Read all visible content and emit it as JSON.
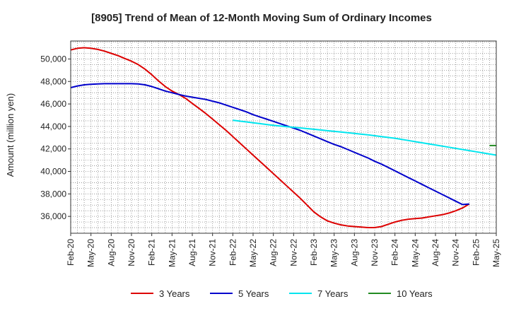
{
  "chart_data": {
    "type": "line",
    "title": "[8905]  Trend of Mean of 12-Month Moving Sum of Ordinary Incomes",
    "xlabel": "",
    "ylabel": "Amount (million yen)",
    "ylim": [
      34500,
      51600
    ],
    "yticks": [
      36000,
      38000,
      40000,
      42000,
      44000,
      46000,
      48000,
      50000
    ],
    "ytick_labels": [
      "36,000",
      "38,000",
      "40,000",
      "42,000",
      "44,000",
      "46,000",
      "48,000",
      "50,000"
    ],
    "x_tick_labels": [
      "Feb-20",
      "May-20",
      "Aug-20",
      "Nov-20",
      "Feb-21",
      "May-21",
      "Aug-21",
      "Nov-21",
      "Feb-22",
      "May-22",
      "Aug-22",
      "Nov-22",
      "Feb-23",
      "May-23",
      "Aug-23",
      "Nov-23",
      "Feb-24",
      "May-24",
      "Aug-24",
      "Nov-24",
      "Feb-25",
      "May-25"
    ],
    "x_month_offset_of_first_tick": 0,
    "x_months_per_tick": 3,
    "grid": true,
    "legend_position": "bottom",
    "series": [
      {
        "name": "3 Years",
        "color": "#dd0000",
        "points": [
          [
            0,
            50800
          ],
          [
            1,
            50950
          ],
          [
            2,
            51000
          ],
          [
            3,
            50950
          ],
          [
            4,
            50850
          ],
          [
            5,
            50700
          ],
          [
            6,
            50500
          ],
          [
            7,
            50300
          ],
          [
            8,
            50050
          ],
          [
            9,
            49800
          ],
          [
            10,
            49500
          ],
          [
            11,
            49100
          ],
          [
            12,
            48600
          ],
          [
            13,
            48050
          ],
          [
            14,
            47550
          ],
          [
            15,
            47150
          ],
          [
            16,
            46850
          ],
          [
            17,
            46500
          ],
          [
            18,
            46050
          ],
          [
            19,
            45600
          ],
          [
            20,
            45150
          ],
          [
            21,
            44650
          ],
          [
            22,
            44150
          ],
          [
            23,
            43650
          ],
          [
            24,
            43100
          ],
          [
            25,
            42550
          ],
          [
            26,
            42000
          ],
          [
            27,
            41450
          ],
          [
            28,
            40900
          ],
          [
            29,
            40350
          ],
          [
            30,
            39800
          ],
          [
            31,
            39250
          ],
          [
            32,
            38700
          ],
          [
            33,
            38150
          ],
          [
            34,
            37600
          ],
          [
            35,
            37000
          ],
          [
            36,
            36400
          ],
          [
            37,
            35950
          ],
          [
            38,
            35600
          ],
          [
            39,
            35400
          ],
          [
            40,
            35250
          ],
          [
            41,
            35150
          ],
          [
            42,
            35100
          ],
          [
            43,
            35050
          ],
          [
            44,
            35000
          ],
          [
            45,
            35000
          ],
          [
            46,
            35100
          ],
          [
            47,
            35300
          ],
          [
            48,
            35500
          ],
          [
            49,
            35650
          ],
          [
            50,
            35750
          ],
          [
            51,
            35800
          ],
          [
            52,
            35850
          ],
          [
            53,
            35950
          ],
          [
            54,
            36050
          ],
          [
            55,
            36150
          ],
          [
            56,
            36300
          ],
          [
            57,
            36500
          ],
          [
            58,
            36750
          ],
          [
            59,
            37100
          ]
        ]
      },
      {
        "name": "5 Years",
        "color": "#0000cc",
        "points": [
          [
            0,
            47450
          ],
          [
            1,
            47600
          ],
          [
            2,
            47700
          ],
          [
            3,
            47750
          ],
          [
            4,
            47780
          ],
          [
            5,
            47800
          ],
          [
            6,
            47800
          ],
          [
            7,
            47800
          ],
          [
            8,
            47800
          ],
          [
            9,
            47800
          ],
          [
            10,
            47780
          ],
          [
            11,
            47700
          ],
          [
            12,
            47550
          ],
          [
            13,
            47350
          ],
          [
            14,
            47150
          ],
          [
            15,
            47000
          ],
          [
            16,
            46850
          ],
          [
            17,
            46700
          ],
          [
            18,
            46600
          ],
          [
            19,
            46500
          ],
          [
            20,
            46400
          ],
          [
            21,
            46250
          ],
          [
            22,
            46100
          ],
          [
            23,
            45900
          ],
          [
            24,
            45700
          ],
          [
            25,
            45500
          ],
          [
            26,
            45300
          ],
          [
            27,
            45050
          ],
          [
            28,
            44850
          ],
          [
            29,
            44650
          ],
          [
            30,
            44450
          ],
          [
            31,
            44250
          ],
          [
            32,
            44050
          ],
          [
            33,
            43850
          ],
          [
            34,
            43650
          ],
          [
            35,
            43400
          ],
          [
            36,
            43150
          ],
          [
            37,
            42900
          ],
          [
            38,
            42650
          ],
          [
            39,
            42400
          ],
          [
            40,
            42200
          ],
          [
            41,
            41950
          ],
          [
            42,
            41700
          ],
          [
            43,
            41450
          ],
          [
            44,
            41200
          ],
          [
            45,
            40900
          ],
          [
            46,
            40650
          ],
          [
            47,
            40350
          ],
          [
            48,
            40050
          ],
          [
            49,
            39750
          ],
          [
            50,
            39450
          ],
          [
            51,
            39150
          ],
          [
            52,
            38850
          ],
          [
            53,
            38550
          ],
          [
            54,
            38250
          ],
          [
            55,
            37950
          ],
          [
            56,
            37650
          ],
          [
            57,
            37350
          ],
          [
            58,
            37050
          ],
          [
            59,
            37100
          ]
        ]
      },
      {
        "name": "7 Years",
        "color": "#00e5ee",
        "points": [
          [
            24,
            44550
          ],
          [
            26,
            44400
          ],
          [
            28,
            44250
          ],
          [
            30,
            44100
          ],
          [
            32,
            43980
          ],
          [
            34,
            43870
          ],
          [
            36,
            43750
          ],
          [
            38,
            43620
          ],
          [
            40,
            43500
          ],
          [
            42,
            43380
          ],
          [
            44,
            43250
          ],
          [
            46,
            43100
          ],
          [
            48,
            42950
          ],
          [
            50,
            42750
          ],
          [
            52,
            42550
          ],
          [
            54,
            42350
          ],
          [
            56,
            42150
          ],
          [
            58,
            41950
          ],
          [
            60,
            41750
          ],
          [
            62,
            41550
          ],
          [
            63,
            41450
          ]
        ]
      },
      {
        "name": "10 Years",
        "color": "#228b22",
        "points": [
          [
            62,
            42300
          ],
          [
            63,
            42300
          ]
        ]
      }
    ]
  }
}
